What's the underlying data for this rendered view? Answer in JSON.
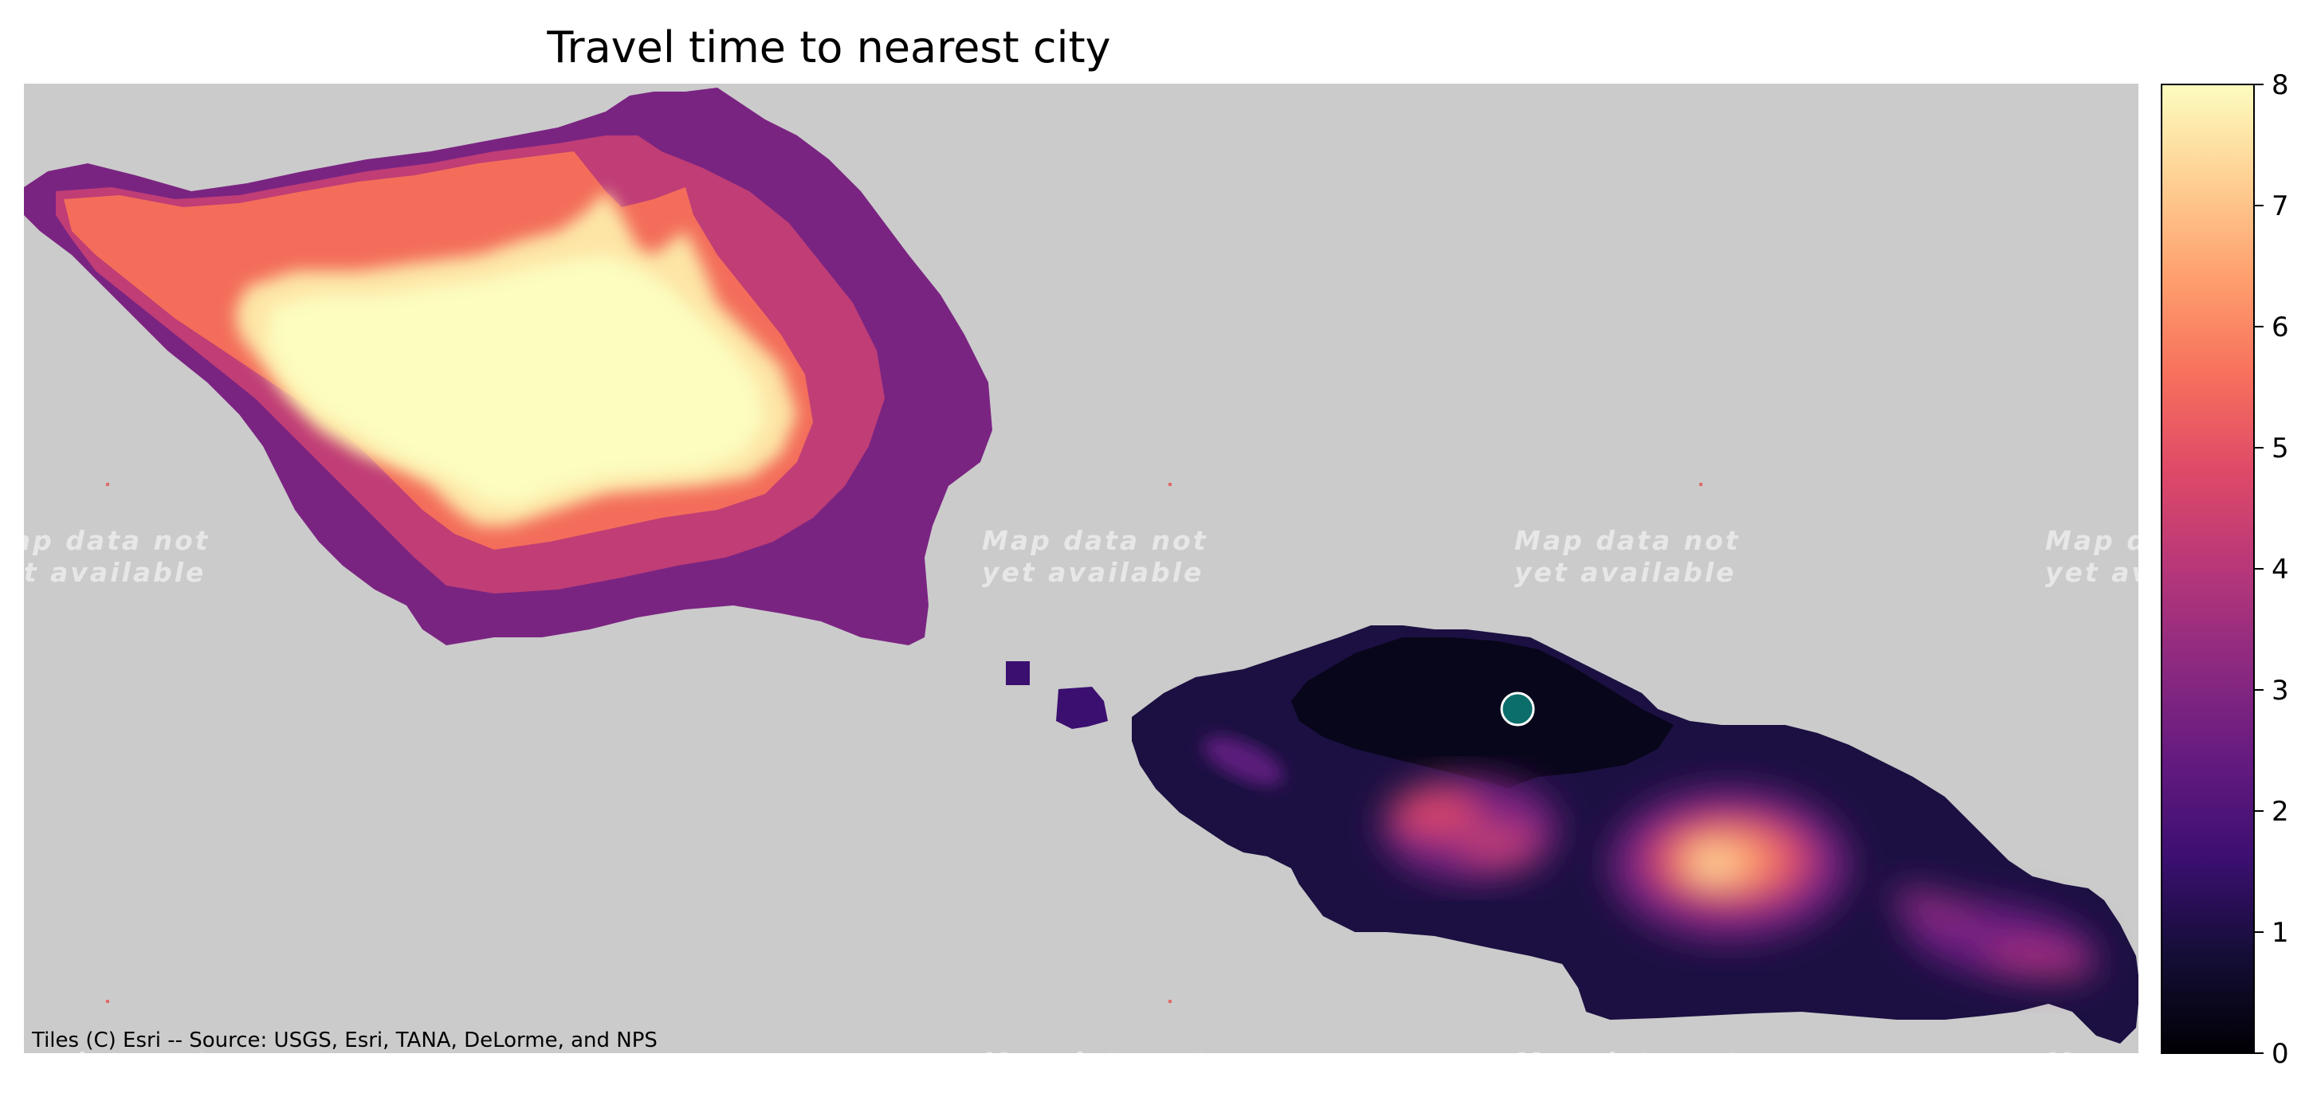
{
  "title": "Travel time to nearest city",
  "attribution": "Tiles (C) Esri -- Source: USGS, Esri, TANA, DeLorme, and NPS",
  "watermark": {
    "line1": "Map data not",
    "line2": "yet available"
  },
  "colorbar": {
    "colormap": "magma",
    "min": 0,
    "max": 8,
    "ticks": [
      "0",
      "1",
      "2",
      "3",
      "4",
      "5",
      "6",
      "7",
      "8"
    ]
  },
  "marker": {
    "color": "#0b6e6a",
    "edge_color": "#ffffff"
  },
  "colors": {
    "map_background": "#cbcbcb"
  }
}
